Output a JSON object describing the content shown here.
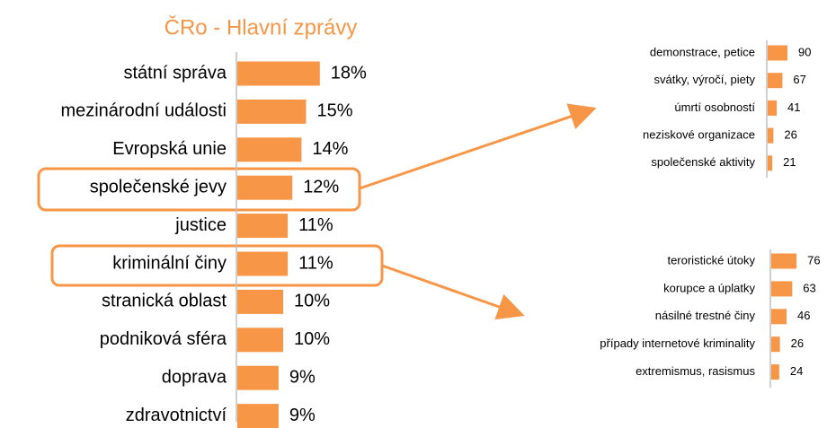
{
  "chart_data": [
    {
      "type": "bar",
      "title": "ČRo - Hlavní zprávy",
      "color": "#f79646",
      "categories": [
        "státní správa",
        "mezinárodní události",
        "Evropská unie",
        "společenské jevy",
        "justice",
        "kriminální činy",
        "stranická oblast",
        "podniková sféra",
        "doprava",
        "zdravotnictví"
      ],
      "values": [
        18,
        15,
        14,
        12,
        11,
        11,
        10,
        10,
        9,
        9
      ],
      "value_labels": [
        "18%",
        "15%",
        "14%",
        "12%",
        "11%",
        "11%",
        "10%",
        "10%",
        "9%",
        "9%"
      ]
    },
    {
      "type": "bar",
      "color": "#f79646",
      "categories": [
        "demonstrace, petice",
        "svátky, výročí, piety",
        "úmrtí osobností",
        "neziskové organizace",
        "společenské aktivity"
      ],
      "values": [
        90,
        67,
        41,
        26,
        21
      ]
    },
    {
      "type": "bar",
      "color": "#f79646",
      "categories": [
        "teroristické útoky",
        "korupce a úplatky",
        "násilné trestné činy",
        "případy internetové kriminality",
        "extremismus, rasismus"
      ],
      "values": [
        76,
        63,
        46,
        26,
        24
      ]
    }
  ]
}
